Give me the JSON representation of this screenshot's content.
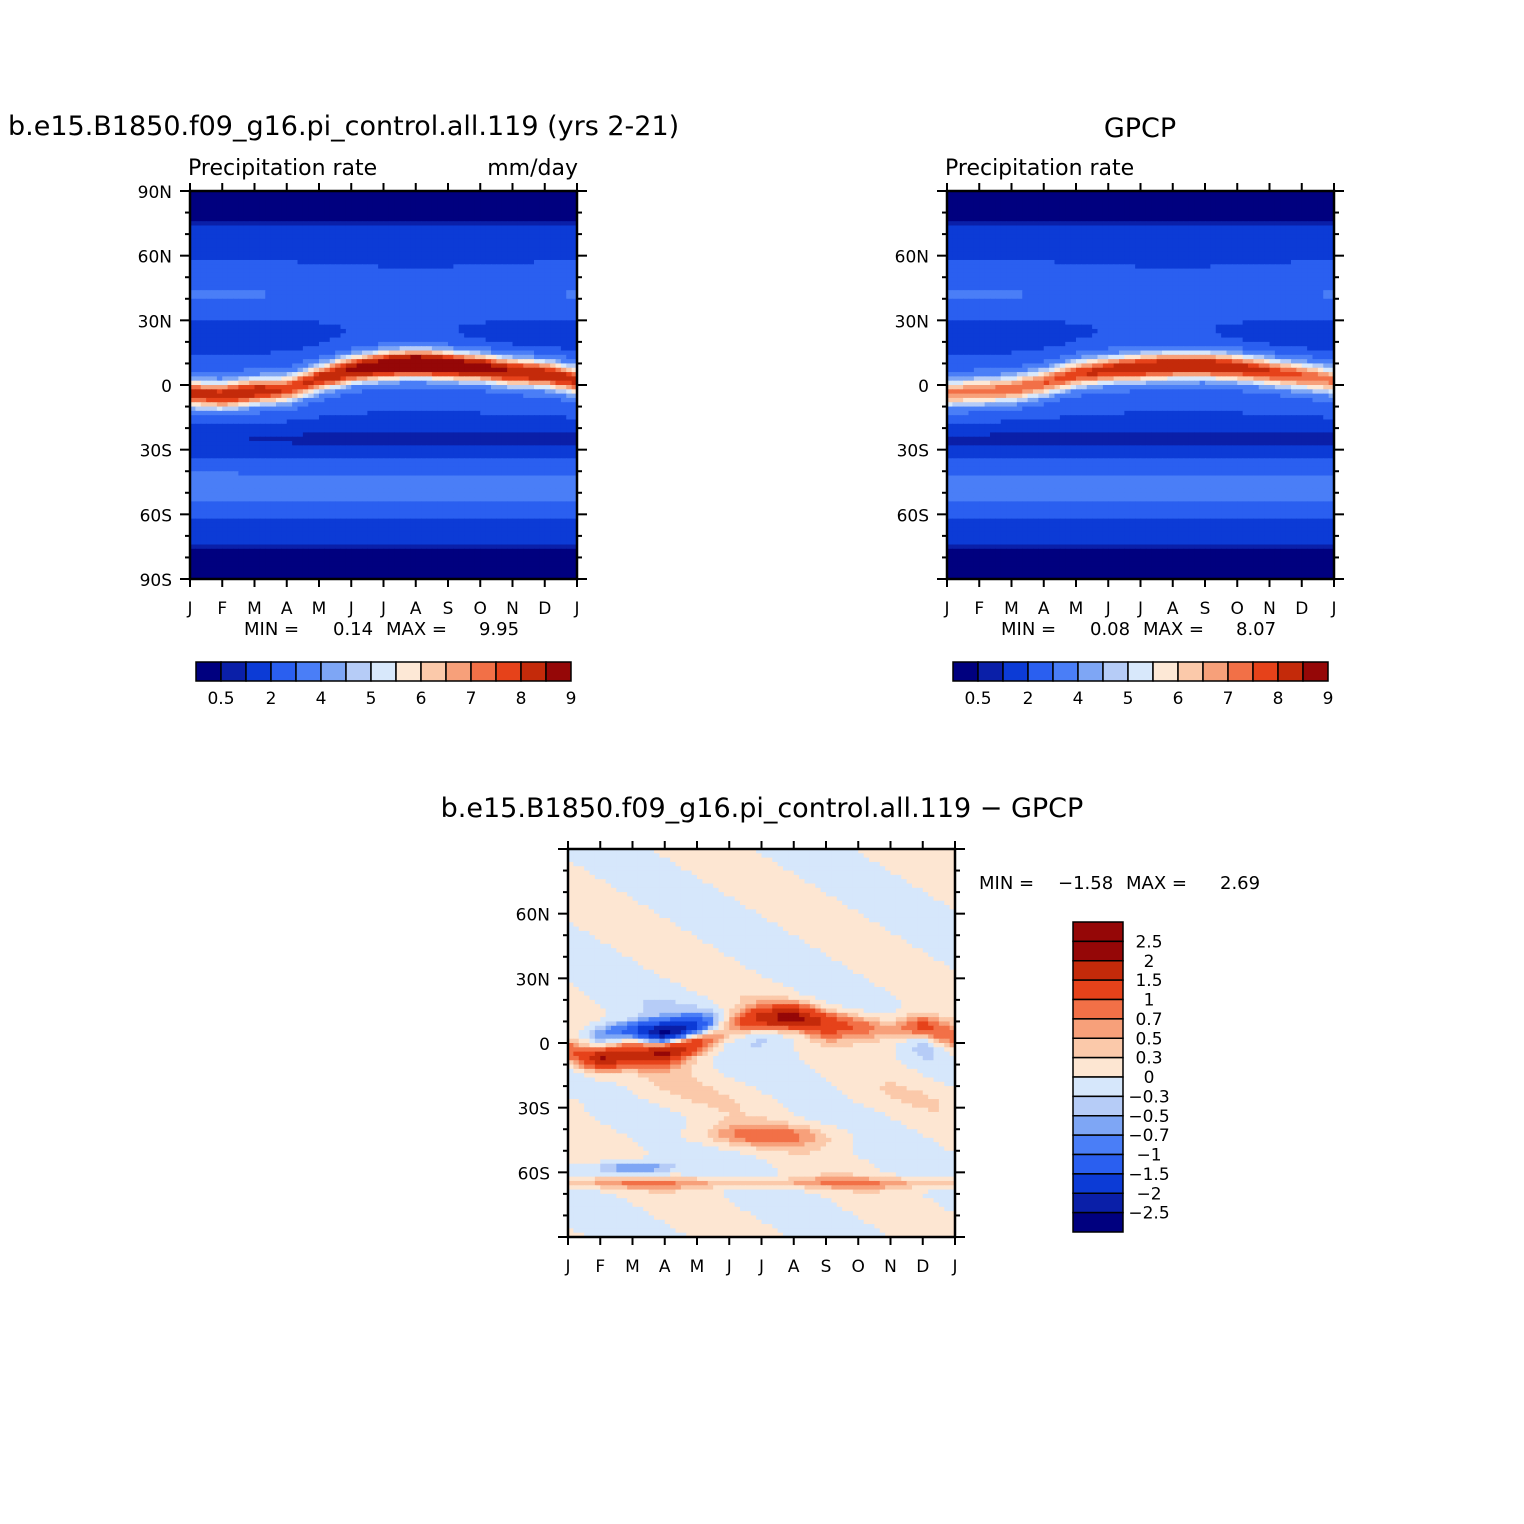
{
  "panels": {
    "model": {
      "title": "b.e15.B1850.f09_g16.pi_control.all.119 (yrs 2-21)",
      "left_string": "Precipitation rate",
      "right_string": "mm/day",
      "min_label": "MIN =",
      "min_value": "0.14",
      "max_label": "MAX =",
      "max_value": "9.95",
      "lat_labels": [
        "90N",
        "60N",
        "30N",
        "0",
        "30S",
        "60S",
        "90S"
      ],
      "month_labels": [
        "J",
        "F",
        "M",
        "A",
        "M",
        "J",
        "J",
        "A",
        "S",
        "O",
        "N",
        "D",
        "J"
      ],
      "colorbar_labels": [
        "0.5",
        "2",
        "4",
        "5",
        "6",
        "7",
        "8",
        "9"
      ]
    },
    "obs": {
      "title": "GPCP",
      "left_string": "Precipitation rate",
      "min_label": "MIN =",
      "min_value": "0.08",
      "max_label": "MAX =",
      "max_value": "8.07",
      "lat_labels": [
        "60N",
        "30N",
        "0",
        "30S",
        "60S"
      ],
      "month_labels": [
        "J",
        "F",
        "M",
        "A",
        "M",
        "J",
        "J",
        "A",
        "S",
        "O",
        "N",
        "D",
        "J"
      ],
      "colorbar_labels": [
        "0.5",
        "2",
        "4",
        "5",
        "6",
        "7",
        "8",
        "9"
      ]
    },
    "diff": {
      "title": "b.e15.B1850.f09_g16.pi_control.all.119 − GPCP",
      "min_label": "MIN =",
      "min_value": "−1.58",
      "max_label": "MAX =",
      "max_value": "2.69",
      "lat_labels": [
        "60N",
        "30N",
        "0",
        "30S",
        "60S"
      ],
      "month_labels": [
        "J",
        "F",
        "M",
        "A",
        "M",
        "J",
        "J",
        "A",
        "S",
        "O",
        "N",
        "D",
        "J"
      ],
      "colorbar_labels": [
        "2.5",
        "2",
        "1.5",
        "1",
        "0.7",
        "0.5",
        "0.3",
        "0",
        "−0.3",
        "−0.5",
        "−0.7",
        "−1",
        "−1.5",
        "−2",
        "−2.5"
      ]
    }
  },
  "colors": {
    "abs_palette": [
      "#00007f",
      "#0a1fa8",
      "#0c3bd6",
      "#2a5ff0",
      "#4a7ef7",
      "#7ea6f5",
      "#b6ccf7",
      "#d8e8fb",
      "#fde8d6",
      "#fbc9aa",
      "#f7a07a",
      "#f27047",
      "#e6421a",
      "#c42a0a",
      "#950707"
    ],
    "diff_palette": [
      "#00007f",
      "#0a1fa8",
      "#0c3bd6",
      "#2a5ff0",
      "#4a7ef7",
      "#7ea6f5",
      "#b6ccf7",
      "#d6e7fb",
      "#fde6d2",
      "#fbc9aa",
      "#f7a07a",
      "#f27047",
      "#e6421a",
      "#c42a0a",
      "#950707"
    ]
  },
  "chart_data": [
    {
      "type": "heatmap",
      "name": "model",
      "x": [
        "J",
        "F",
        "M",
        "A",
        "M",
        "J",
        "J",
        "A",
        "S",
        "O",
        "N",
        "D",
        "J"
      ],
      "y_range": [
        -90,
        90
      ],
      "units": "mm/day",
      "levels": [
        0.5,
        1,
        2,
        3,
        4,
        4.5,
        5,
        5.5,
        6,
        6.5,
        7,
        7.5,
        8,
        9
      ],
      "min": 0.14,
      "max": 9.95,
      "itcz": {
        "lat_by_month": [
          -4,
          -5,
          -3,
          -2,
          3,
          7,
          9,
          10,
          9,
          8,
          6,
          5,
          2
        ],
        "peak_by_month": [
          7.3,
          7.6,
          7.7,
          7.0,
          7.4,
          8.3,
          9.1,
          9.95,
          9.4,
          8.7,
          8.1,
          7.8,
          7.3
        ]
      }
    },
    {
      "type": "heatmap",
      "name": "obs",
      "x": [
        "J",
        "F",
        "M",
        "A",
        "M",
        "J",
        "J",
        "A",
        "S",
        "O",
        "N",
        "D",
        "J"
      ],
      "y_range": [
        -90,
        90
      ],
      "units": "mm/day",
      "levels": [
        0.5,
        1,
        2,
        3,
        4,
        4.5,
        5,
        5.5,
        6,
        6.5,
        7,
        7.5,
        8,
        9
      ],
      "min": 0.08,
      "max": 8.07,
      "itcz": {
        "lat_by_month": [
          -4,
          -3,
          -2,
          1,
          5,
          7,
          8,
          9,
          9,
          8,
          6,
          4,
          2
        ],
        "peak_by_month": [
          6.2,
          6.3,
          6.4,
          6.6,
          7.0,
          7.5,
          7.9,
          8.07,
          7.9,
          7.6,
          7.2,
          6.7,
          6.2
        ]
      }
    },
    {
      "type": "heatmap",
      "name": "diff",
      "x": [
        "J",
        "F",
        "M",
        "A",
        "M",
        "J",
        "J",
        "A",
        "S",
        "O",
        "N",
        "D",
        "J"
      ],
      "y_range": [
        -90,
        90
      ],
      "units": "mm/day",
      "levels": [
        -2.5,
        -2,
        -1.5,
        -1,
        -0.7,
        -0.5,
        -0.3,
        0,
        0.3,
        0.5,
        0.7,
        1,
        1.5,
        2,
        2.5
      ],
      "min": -1.58,
      "max": 2.69
    }
  ]
}
